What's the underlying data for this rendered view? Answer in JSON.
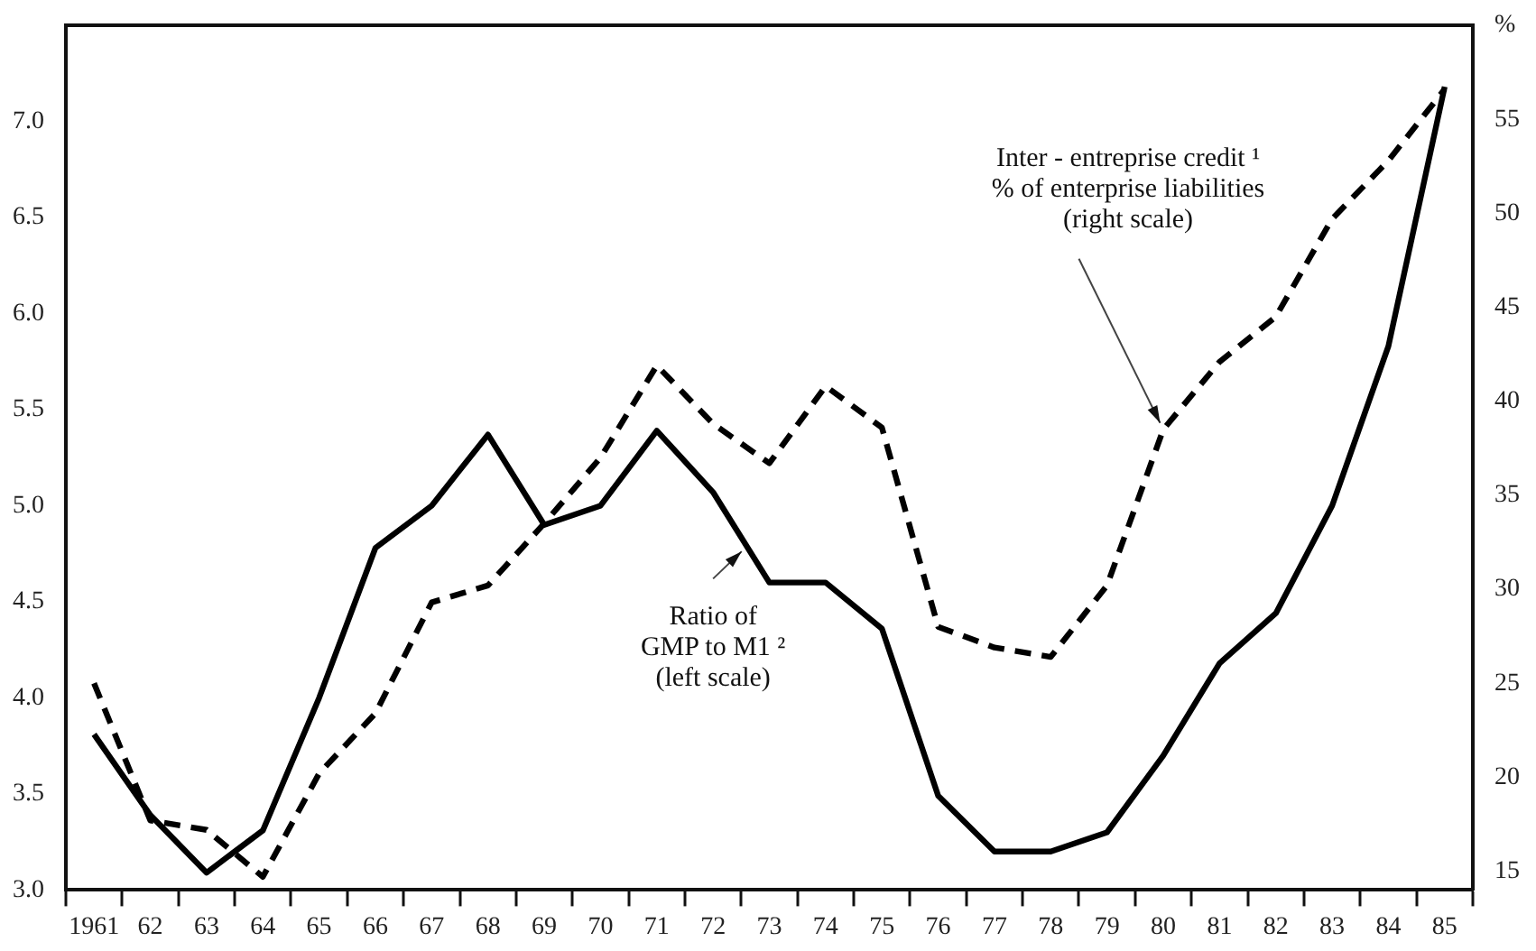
{
  "chart_data": {
    "type": "line",
    "categories": [
      "1961",
      "62",
      "63",
      "64",
      "65",
      "66",
      "67",
      "68",
      "69",
      "70",
      "71",
      "72",
      "73",
      "74",
      "75",
      "76",
      "77",
      "78",
      "79",
      "80",
      "81",
      "82",
      "83",
      "84",
      "85"
    ],
    "series": [
      {
        "name": "Ratio of\nGMP to M1 ²\n(left scale)",
        "color": "#000000",
        "line_style": "solid",
        "axis": "y",
        "values": [
          3.81,
          3.39,
          3.09,
          3.31,
          4.0,
          4.78,
          5.0,
          5.37,
          4.9,
          5.0,
          5.39,
          5.07,
          4.6,
          4.6,
          4.36,
          3.49,
          3.2,
          3.2,
          3.3,
          3.7,
          4.18,
          4.44,
          5.0,
          5.83,
          7.18
        ]
      },
      {
        "name": "Inter - entreprise credit ¹\n% of enterprise liabilities\n(right scale)",
        "color": "#000000",
        "line_style": "dashed",
        "axis": "y2",
        "values": [
          25,
          17.7,
          17.2,
          14.7,
          20.2,
          23.4,
          29.3,
          30.2,
          33.5,
          37.0,
          41.9,
          38.8,
          36.7,
          40.8,
          38.6,
          28.0,
          26.9,
          26.4,
          30.2,
          38.5,
          42.1,
          44.5,
          49.7,
          52.8,
          56.6
        ]
      }
    ],
    "ylim": [
      3,
      7.5
    ],
    "yticks": [
      {
        "value": 3,
        "label": "3.0"
      },
      {
        "value": 3.5,
        "label": "3.5"
      },
      {
        "value": 4,
        "label": "4.0"
      },
      {
        "value": 4.5,
        "label": "4.5"
      },
      {
        "value": 5,
        "label": "5.0"
      },
      {
        "value": 5.5,
        "label": "5.5"
      },
      {
        "value": 6,
        "label": "6.0"
      },
      {
        "value": 6.5,
        "label": "6.5"
      },
      {
        "value": 7,
        "label": "7.0"
      }
    ],
    "y2lim": [
      14,
      60
    ],
    "y2ticks": [
      15,
      20,
      25,
      30,
      35,
      40,
      45,
      50,
      55,
      {
        "value": 60,
        "label": "%"
      }
    ],
    "grid": false,
    "legend": false,
    "marker": "none"
  }
}
